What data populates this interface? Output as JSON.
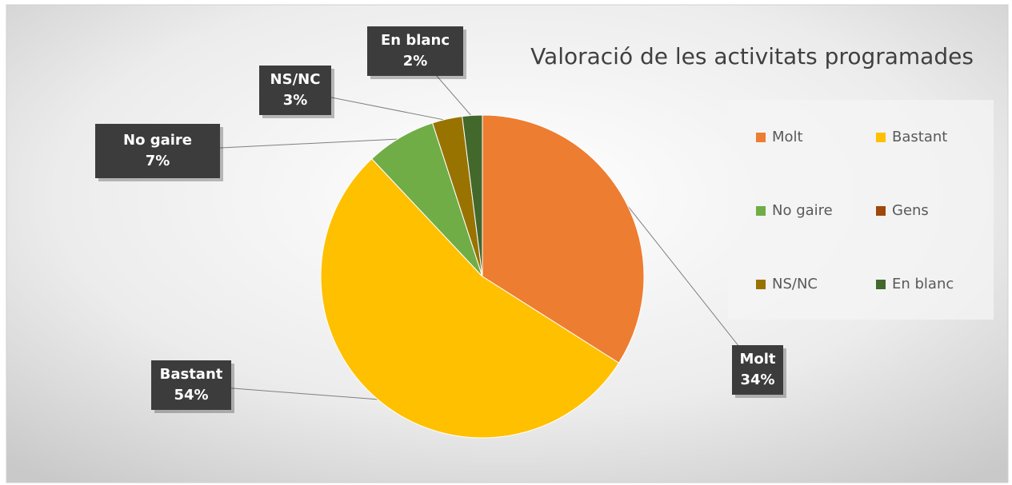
{
  "chart_data": {
    "type": "pie",
    "title": "Valoració de les activitats programades",
    "categories": [
      "Molt",
      "Bastant",
      "No gaire",
      "Gens",
      "NS/NC",
      "En blanc"
    ],
    "values": [
      34,
      54,
      7,
      0,
      3,
      2
    ],
    "value_labels": [
      "34%",
      "54%",
      "7%",
      null,
      "3%",
      "2%"
    ],
    "colors": [
      "#ed7d31",
      "#ffc000",
      "#70ad47",
      "#9e480e",
      "#997300",
      "#43682b"
    ],
    "legend": "right"
  }
}
